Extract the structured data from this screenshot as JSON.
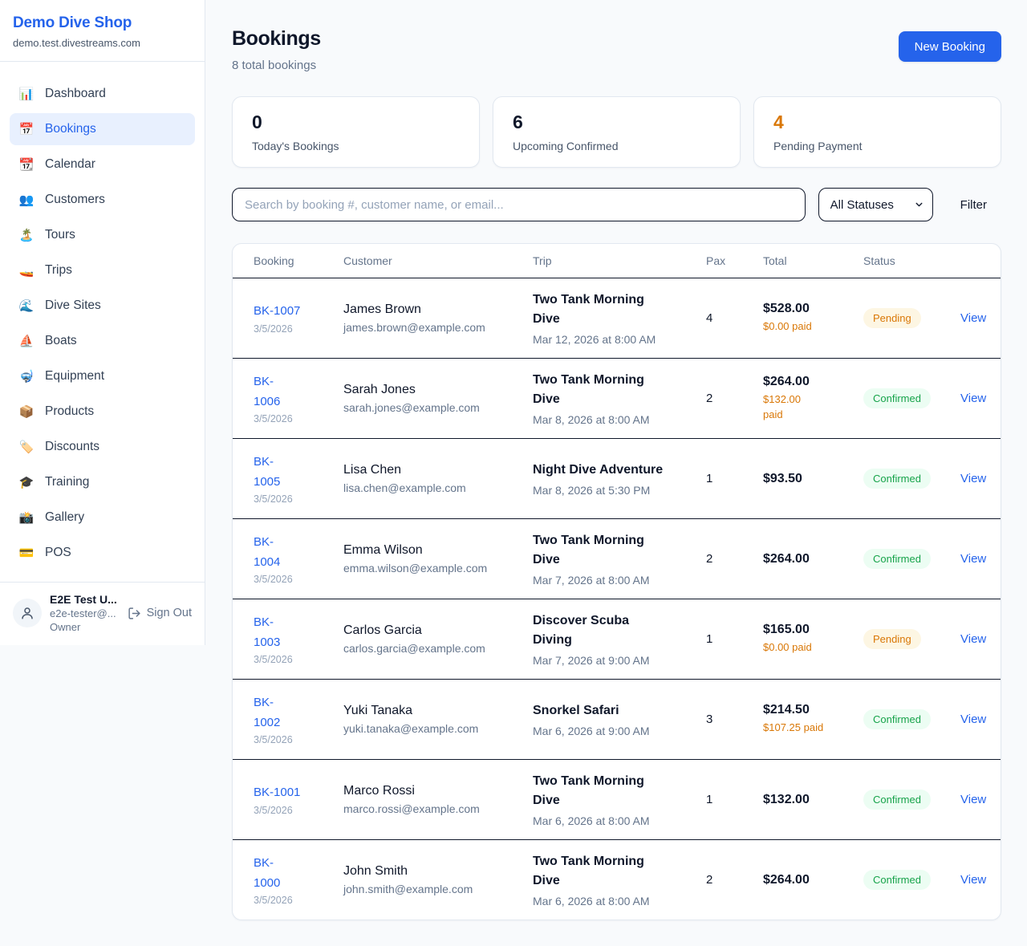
{
  "colors": {
    "accent": "#2563eb",
    "pending_text": "#d97706",
    "pending_bg": "#fdf6e3",
    "confirmed_text": "#16a34a",
    "confirmed_bg": "#ecfdf3",
    "page_bg": "#f8fafc"
  },
  "sidebar": {
    "shop_name": "Demo Dive Shop",
    "shop_domain": "demo.test.divestreams.com",
    "nav": [
      {
        "label": "Dashboard",
        "icon": "📊",
        "active": false
      },
      {
        "label": "Bookings",
        "icon": "📅",
        "active": true
      },
      {
        "label": "Calendar",
        "icon": "📆",
        "active": false
      },
      {
        "label": "Customers",
        "icon": "👥",
        "active": false
      },
      {
        "label": "Tours",
        "icon": "🏝️",
        "active": false
      },
      {
        "label": "Trips",
        "icon": "🚤",
        "active": false
      },
      {
        "label": "Dive Sites",
        "icon": "🌊",
        "active": false
      },
      {
        "label": "Boats",
        "icon": "⛵",
        "active": false
      },
      {
        "label": "Equipment",
        "icon": "🤿",
        "active": false
      },
      {
        "label": "Products",
        "icon": "📦",
        "active": false
      },
      {
        "label": "Discounts",
        "icon": "🏷️",
        "active": false
      },
      {
        "label": "Training",
        "icon": "🎓",
        "active": false
      },
      {
        "label": "Gallery",
        "icon": "📸",
        "active": false
      },
      {
        "label": "POS",
        "icon": "💳",
        "active": false
      }
    ],
    "user": {
      "name": "E2E Test U...",
      "email": "e2e-tester@...",
      "role": "Owner",
      "sign_out_label": "Sign Out"
    }
  },
  "header": {
    "title": "Bookings",
    "subtitle": "8 total bookings",
    "new_booking_label": "New Booking"
  },
  "stats": [
    {
      "value": "0",
      "label": "Today's Bookings",
      "highlight": false
    },
    {
      "value": "6",
      "label": "Upcoming Confirmed",
      "highlight": false
    },
    {
      "value": "4",
      "label": "Pending Payment",
      "highlight": true
    }
  ],
  "filters": {
    "search_placeholder": "Search by booking #, customer name, or email...",
    "status_selected": "All Statuses",
    "filter_label": "Filter"
  },
  "table": {
    "columns": [
      "Booking",
      "Customer",
      "Trip",
      "Pax",
      "Total",
      "Status"
    ],
    "view_label": "View",
    "rows": [
      {
        "id": "BK-1007",
        "id_wrapped": false,
        "date": "3/5/2026",
        "customer": "James Brown",
        "email": "james.brown@example.com",
        "trip": "Two Tank Morning Dive",
        "trip_wrapped": true,
        "trip_datetime": "Mar 12, 2026 at 8:00 AM",
        "pax": "4",
        "total": "$528.00",
        "paid": "$0.00 paid",
        "paid_wrapped": false,
        "status": {
          "label": "Pending",
          "type": "pending"
        }
      },
      {
        "id": "BK-1006",
        "id_wrapped": true,
        "date": "3/5/2026",
        "customer": "Sarah Jones",
        "email": "sarah.jones@example.com",
        "trip": "Two Tank Morning Dive",
        "trip_wrapped": true,
        "trip_datetime": "Mar 8, 2026 at 8:00 AM",
        "pax": "2",
        "total": "$264.00",
        "paid": "$132.00 paid",
        "paid_wrapped": true,
        "status": {
          "label": "Confirmed",
          "type": "confirmed"
        }
      },
      {
        "id": "BK-1005",
        "id_wrapped": true,
        "date": "3/5/2026",
        "customer": "Lisa Chen",
        "email": "lisa.chen@example.com",
        "trip": "Night Dive Adventure",
        "trip_wrapped": false,
        "trip_datetime": "Mar 8, 2026 at 5:30 PM",
        "pax": "1",
        "total": "$93.50",
        "paid": null,
        "paid_wrapped": false,
        "status": {
          "label": "Confirmed",
          "type": "confirmed"
        }
      },
      {
        "id": "BK-1004",
        "id_wrapped": true,
        "date": "3/5/2026",
        "customer": "Emma Wilson",
        "email": "emma.wilson@example.com",
        "trip": "Two Tank Morning Dive",
        "trip_wrapped": true,
        "trip_datetime": "Mar 7, 2026 at 8:00 AM",
        "pax": "2",
        "total": "$264.00",
        "paid": null,
        "paid_wrapped": false,
        "status": {
          "label": "Confirmed",
          "type": "confirmed"
        }
      },
      {
        "id": "BK-1003",
        "id_wrapped": true,
        "date": "3/5/2026",
        "customer": "Carlos Garcia",
        "email": "carlos.garcia@example.com",
        "trip": "Discover Scuba Diving",
        "trip_wrapped": true,
        "trip_datetime": "Mar 7, 2026 at 9:00 AM",
        "pax": "1",
        "total": "$165.00",
        "paid": "$0.00 paid",
        "paid_wrapped": false,
        "status": {
          "label": "Pending",
          "type": "pending"
        }
      },
      {
        "id": "BK-1002",
        "id_wrapped": true,
        "date": "3/5/2026",
        "customer": "Yuki Tanaka",
        "email": "yuki.tanaka@example.com",
        "trip": "Snorkel Safari",
        "trip_wrapped": false,
        "trip_datetime": "Mar 6, 2026 at 9:00 AM",
        "pax": "3",
        "total": "$214.50",
        "paid": "$107.25 paid",
        "paid_wrapped": false,
        "status": {
          "label": "Confirmed",
          "type": "confirmed"
        }
      },
      {
        "id": "BK-1001",
        "id_wrapped": false,
        "date": "3/5/2026",
        "customer": "Marco Rossi",
        "email": "marco.rossi@example.com",
        "trip": "Two Tank Morning Dive",
        "trip_wrapped": true,
        "trip_datetime": "Mar 6, 2026 at 8:00 AM",
        "pax": "1",
        "total": "$132.00",
        "paid": null,
        "paid_wrapped": false,
        "status": {
          "label": "Confirmed",
          "type": "confirmed"
        }
      },
      {
        "id": "BK-1000",
        "id_wrapped": true,
        "date": "3/5/2026",
        "customer": "John Smith",
        "email": "john.smith@example.com",
        "trip": "Two Tank Morning Dive",
        "trip_wrapped": true,
        "trip_datetime": "Mar 6, 2026 at 8:00 AM",
        "pax": "2",
        "total": "$264.00",
        "paid": null,
        "paid_wrapped": false,
        "status": {
          "label": "Confirmed",
          "type": "confirmed"
        }
      }
    ]
  }
}
